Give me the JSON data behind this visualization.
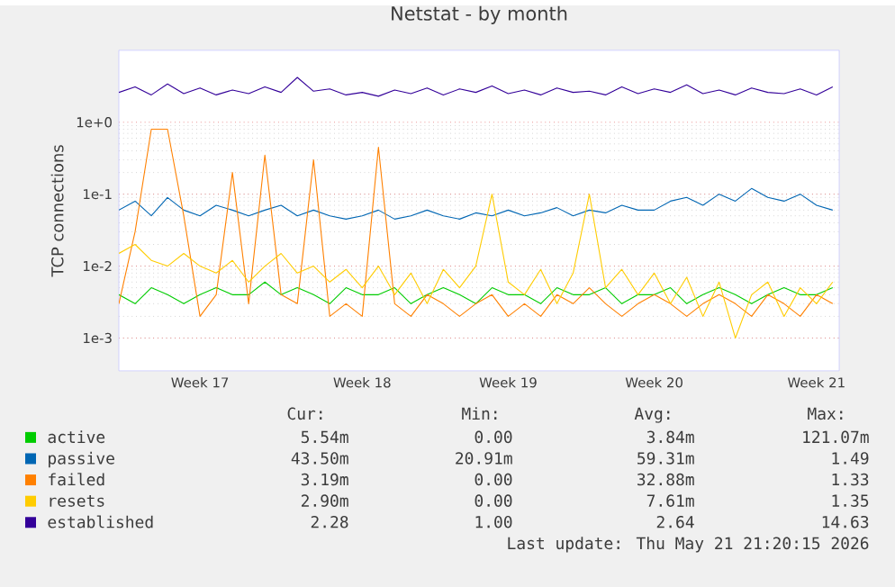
{
  "chart_data": {
    "type": "line",
    "title": "Netstat - by month",
    "ylabel": "TCP connections",
    "log": "y",
    "grid": "y",
    "legend": "bottom",
    "marker": "none",
    "line_style": "solid",
    "ylim": [
      0.00035,
      10
    ],
    "yticks": [
      {
        "value": 0.001,
        "label": "1e-3"
      },
      {
        "value": 0.01,
        "label": "1e-2"
      },
      {
        "value": 0.1,
        "label": "1e-1"
      },
      {
        "value": 1,
        "label": "1e+0"
      }
    ],
    "categories": [
      null,
      null,
      null,
      null,
      null,
      "Week 17",
      null,
      null,
      null,
      null,
      null,
      null,
      null,
      null,
      null,
      "Week 18",
      null,
      null,
      null,
      null,
      null,
      null,
      null,
      null,
      "Week 19",
      null,
      null,
      null,
      null,
      null,
      null,
      null,
      null,
      "Week 20",
      null,
      null,
      null,
      null,
      null,
      null,
      null,
      null,
      null,
      "Week 21",
      null
    ],
    "series": [
      {
        "name": "active",
        "color": "#00cc00",
        "values": [
          0.004,
          0.003,
          0.005,
          0.004,
          0.003,
          0.004,
          0.005,
          0.004,
          0.004,
          0.006,
          0.004,
          0.005,
          0.004,
          0.003,
          0.005,
          0.004,
          0.004,
          0.005,
          0.003,
          0.004,
          0.005,
          0.004,
          0.003,
          0.005,
          0.004,
          0.004,
          0.003,
          0.005,
          0.004,
          0.004,
          0.005,
          0.003,
          0.004,
          0.004,
          0.005,
          0.003,
          0.004,
          0.005,
          0.004,
          0.003,
          0.004,
          0.005,
          0.004,
          0.004,
          0.005
        ]
      },
      {
        "name": "passive",
        "color": "#0066b3",
        "values": [
          0.06,
          0.08,
          0.05,
          0.09,
          0.06,
          0.05,
          0.07,
          0.06,
          0.05,
          0.06,
          0.07,
          0.05,
          0.06,
          0.05,
          0.045,
          0.05,
          0.06,
          0.045,
          0.05,
          0.06,
          0.05,
          0.045,
          0.055,
          0.05,
          0.06,
          0.05,
          0.055,
          0.065,
          0.05,
          0.06,
          0.055,
          0.07,
          0.06,
          0.06,
          0.08,
          0.09,
          0.07,
          0.1,
          0.08,
          0.12,
          0.09,
          0.08,
          0.1,
          0.07,
          0.06
        ]
      },
      {
        "name": "failed",
        "color": "#ff8000",
        "values": [
          0.003,
          0.03,
          0.8,
          0.8,
          0.05,
          0.002,
          0.004,
          0.2,
          0.003,
          0.35,
          0.004,
          0.003,
          0.3,
          0.002,
          0.003,
          0.002,
          0.45,
          0.003,
          0.002,
          0.004,
          0.003,
          0.002,
          0.003,
          0.004,
          0.002,
          0.003,
          0.002,
          0.004,
          0.003,
          0.005,
          0.003,
          0.002,
          0.003,
          0.004,
          0.003,
          0.002,
          0.003,
          0.004,
          0.003,
          0.002,
          0.004,
          0.003,
          0.002,
          0.004,
          0.003
        ]
      },
      {
        "name": "resets",
        "color": "#ffcc00",
        "values": [
          0.015,
          0.02,
          0.012,
          0.01,
          0.015,
          0.01,
          0.008,
          0.012,
          0.006,
          0.01,
          0.015,
          0.008,
          0.01,
          0.006,
          0.009,
          0.005,
          0.01,
          0.004,
          0.008,
          0.003,
          0.009,
          0.005,
          0.01,
          0.1,
          0.006,
          0.004,
          0.009,
          0.003,
          0.008,
          0.1,
          0.005,
          0.009,
          0.004,
          0.008,
          0.003,
          0.007,
          0.002,
          0.006,
          0.001,
          0.004,
          0.006,
          0.002,
          0.005,
          0.003,
          0.006
        ]
      },
      {
        "name": "established",
        "color": "#330099",
        "values": [
          2.6,
          3.1,
          2.4,
          3.4,
          2.5,
          3.0,
          2.4,
          2.8,
          2.5,
          3.1,
          2.6,
          4.2,
          2.7,
          2.9,
          2.4,
          2.6,
          2.3,
          2.8,
          2.5,
          3.0,
          2.4,
          2.9,
          2.6,
          3.2,
          2.5,
          2.8,
          2.4,
          3.0,
          2.6,
          2.7,
          2.4,
          3.1,
          2.5,
          2.9,
          2.6,
          3.3,
          2.5,
          2.8,
          2.4,
          3.0,
          2.6,
          2.5,
          2.9,
          2.4,
          3.1
        ]
      }
    ],
    "annotations": [
      "Cur:",
      "Min:",
      "Avg:",
      "Max:",
      "5.54m",
      "0.00",
      "3.84m",
      "121.07m",
      "43.50m",
      "20.91m",
      "59.31m",
      "1.49",
      "3.19m",
      "0.00",
      "32.88m",
      "1.33",
      "2.90m",
      "0.00",
      "7.61m",
      "1.35",
      "2.28",
      "1.00",
      "2.64",
      "14.63",
      "Last update: Thu May 21 21:20:15 2026"
    ]
  }
}
